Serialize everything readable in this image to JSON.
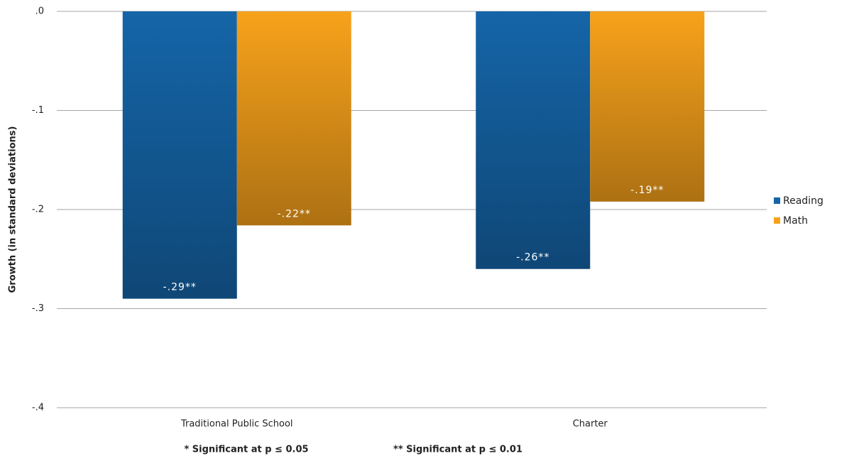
{
  "chart_data": {
    "type": "bar",
    "y_label": "Growth (in standard deviations)",
    "categories": [
      "Traditional Public School",
      "Charter"
    ],
    "series": [
      {
        "name": "Reading",
        "color": "#1565a8",
        "values": [
          -0.29,
          -0.26
        ],
        "value_labels": [
          "-.29**",
          "-.26**"
        ]
      },
      {
        "name": "Math",
        "color": "#f7a21b",
        "values": [
          -0.216,
          -0.192
        ],
        "value_labels": [
          "-.22**",
          "-.19**"
        ]
      }
    ],
    "ylim": [
      -0.4,
      0
    ],
    "yticks": [
      {
        "value": 0,
        "label": ".0"
      },
      {
        "value": -0.1,
        "label": "-.1"
      },
      {
        "value": -0.2,
        "label": "-.2"
      },
      {
        "value": -0.3,
        "label": "-.3"
      },
      {
        "value": -0.4,
        "label": "-.4"
      }
    ],
    "grid": true,
    "legend": "right",
    "notes": [
      "* Significant  at p ≤ 0.05",
      "** Significant  at p ≤ 0.01"
    ]
  }
}
